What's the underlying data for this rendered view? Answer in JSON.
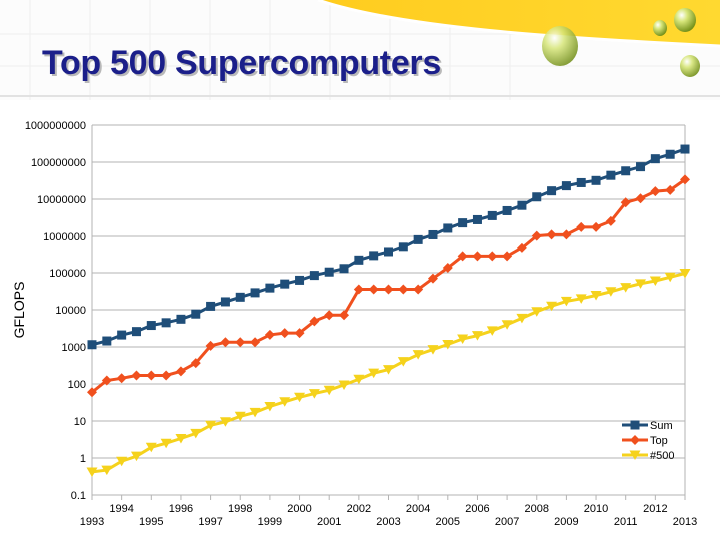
{
  "slide": {
    "title": "Top 500 Supercomputers"
  },
  "chart_data": {
    "type": "line",
    "title": "",
    "xlabel": "",
    "ylabel": "GFLOPS",
    "yscale": "log",
    "ylim": [
      0.1,
      1000000000
    ],
    "xlim": [
      1993,
      2013
    ],
    "y_ticks": [
      "0.1",
      "1",
      "10",
      "100",
      "1000",
      "10000",
      "100000",
      "1000000",
      "10000000",
      "100000000",
      "1000000000"
    ],
    "x_ticks_lower": [
      "1993",
      "1995",
      "1997",
      "1999",
      "2001",
      "2003",
      "2005",
      "2007",
      "2009",
      "2011",
      "2013"
    ],
    "x_ticks_upper": [
      "1994",
      "1996",
      "1998",
      "2000",
      "2002",
      "2004",
      "2006",
      "2008",
      "2010",
      "2012"
    ],
    "grid": true,
    "legend_position": "bottom-right",
    "x": [
      1993.0,
      1993.5,
      1994.0,
      1994.5,
      1995.0,
      1995.5,
      1996.0,
      1996.5,
      1997.0,
      1997.5,
      1998.0,
      1998.5,
      1999.0,
      1999.5,
      2000.0,
      2000.5,
      2001.0,
      2001.5,
      2002.0,
      2002.5,
      2003.0,
      2003.5,
      2004.0,
      2004.5,
      2005.0,
      2005.5,
      2006.0,
      2006.5,
      2007.0,
      2007.5,
      2008.0,
      2008.5,
      2009.0,
      2009.5,
      2010.0,
      2010.5,
      2011.0,
      2011.5,
      2012.0,
      2012.5,
      2013.0
    ],
    "series": [
      {
        "name": "Sum",
        "color": "#1f4e79",
        "marker": "square",
        "values": [
          1150,
          1450,
          2100,
          2600,
          3800,
          4500,
          5600,
          7700,
          12500,
          16500,
          22000,
          29000,
          39000,
          50000,
          63000,
          85000,
          105000,
          130000,
          220000,
          290000,
          370000,
          510000,
          810000,
          1100000,
          1650000,
          2300000,
          2800000,
          3600000,
          4900000,
          6800000,
          11500000,
          16800000,
          23000000,
          28000000,
          32000000,
          44000000,
          58000000,
          75000000,
          123000000,
          162000000,
          224000000
        ]
      },
      {
        "name": "Top",
        "color": "#f0501e",
        "marker": "diamond",
        "values": [
          59.7,
          124,
          143,
          170,
          170,
          170,
          220,
          368,
          1070,
          1340,
          1340,
          1340,
          2120,
          2380,
          2380,
          4940,
          7230,
          7230,
          35860,
          35860,
          35860,
          35860,
          35860,
          70720,
          136800,
          280600,
          280600,
          280600,
          280600,
          478200,
          1026000,
          1105000,
          1105000,
          1759000,
          1759000,
          2566000,
          8162000,
          10510000,
          16320000,
          17590000,
          33860000
        ]
      },
      {
        "name": "#500",
        "color": "#f5d21c",
        "marker": "triangle-down",
        "values": [
          0.42,
          0.47,
          0.82,
          1.12,
          1.95,
          2.51,
          3.36,
          4.62,
          7.67,
          9.51,
          13.4,
          17.1,
          24.7,
          33.1,
          43.8,
          55.1,
          67.8,
          94.3,
          134,
          196,
          245,
          403,
          624,
          851,
          1166,
          1646,
          2026,
          2737,
          4005,
          5929,
          9000,
          12640,
          17100,
          20050,
          24670,
          31120,
          40190,
          50940,
          60820,
          76500,
          96620
        ]
      }
    ]
  }
}
